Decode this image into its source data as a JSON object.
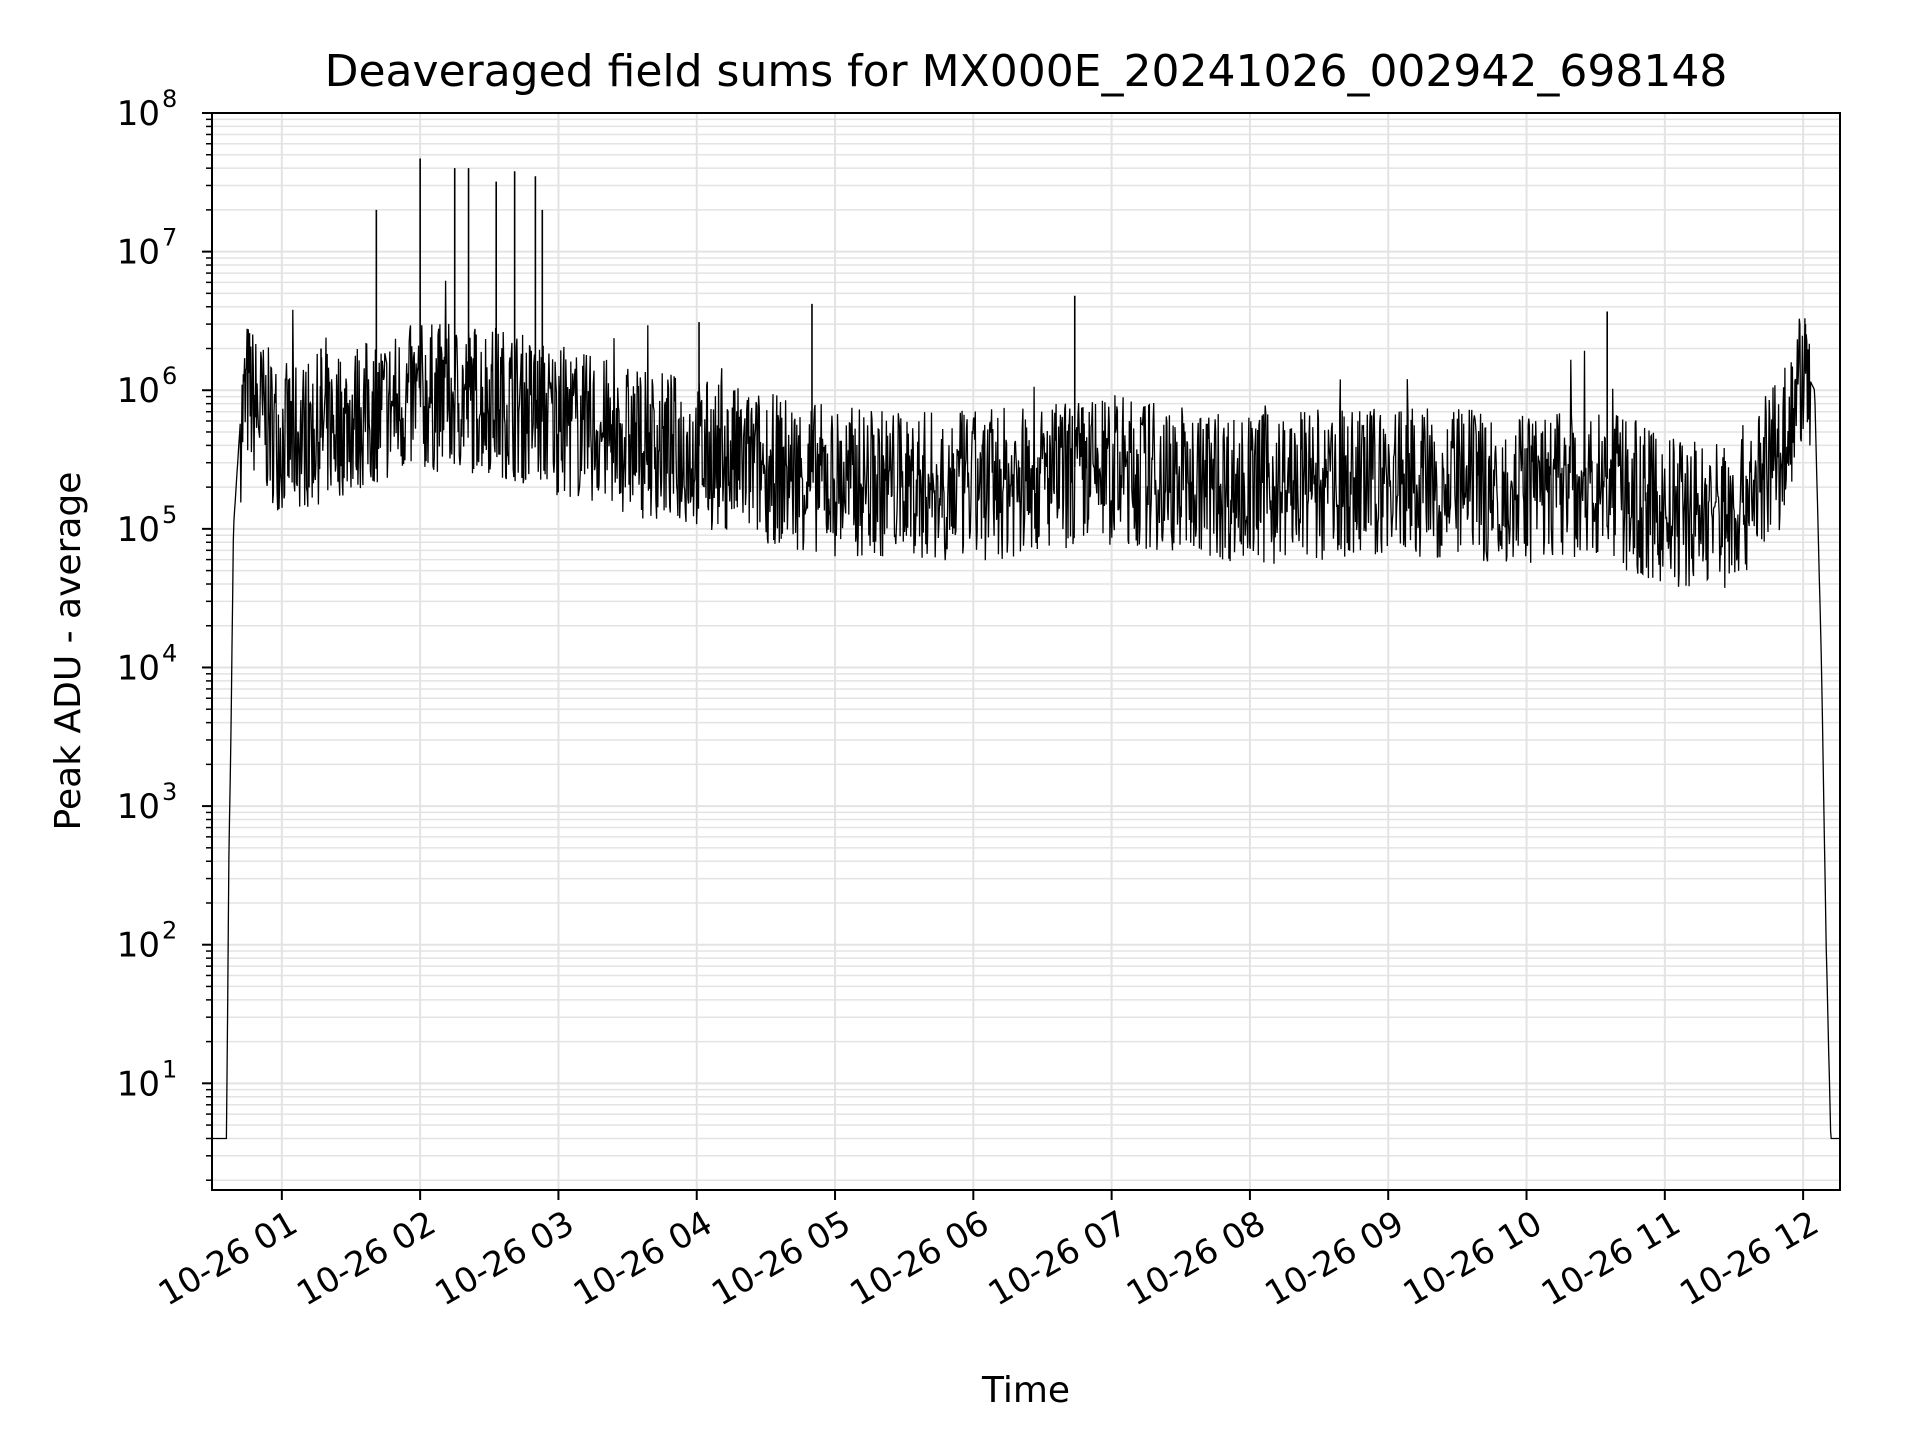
{
  "chart_data": {
    "type": "line",
    "title": "Deaveraged field sums for MX000E_20241026_002942_698148",
    "xlabel": "Time",
    "ylabel": "Peak ADU - average",
    "yscale": "log",
    "xlim": [
      "2024-10-26 00:29:42",
      "2024-10-26 12:16:00"
    ],
    "ylim": [
      1.7,
      100000000
    ],
    "grid": "on",
    "line_color": "#000000",
    "grid_color": "#e3e3e3",
    "x_ticks": [
      {
        "value": "2024-10-26 01:00",
        "label": "10-26 01"
      },
      {
        "value": "2024-10-26 02:00",
        "label": "10-26 02"
      },
      {
        "value": "2024-10-26 03:00",
        "label": "10-26 03"
      },
      {
        "value": "2024-10-26 04:00",
        "label": "10-26 04"
      },
      {
        "value": "2024-10-26 05:00",
        "label": "10-26 05"
      },
      {
        "value": "2024-10-26 06:00",
        "label": "10-26 06"
      },
      {
        "value": "2024-10-26 07:00",
        "label": "10-26 07"
      },
      {
        "value": "2024-10-26 08:00",
        "label": "10-26 08"
      },
      {
        "value": "2024-10-26 09:00",
        "label": "10-26 09"
      },
      {
        "value": "2024-10-26 10:00",
        "label": "10-26 10"
      },
      {
        "value": "2024-10-26 11:00",
        "label": "10-26 11"
      },
      {
        "value": "2024-10-26 12:00",
        "label": "10-26 12"
      }
    ],
    "y_ticks": [
      {
        "value": 10,
        "base": "10",
        "exp": "1"
      },
      {
        "value": 100,
        "base": "10",
        "exp": "2"
      },
      {
        "value": 1000,
        "base": "10",
        "exp": "3"
      },
      {
        "value": 10000,
        "base": "10",
        "exp": "4"
      },
      {
        "value": 100000,
        "base": "10",
        "exp": "5"
      },
      {
        "value": 1000000,
        "base": "10",
        "exp": "6"
      },
      {
        "value": 10000000,
        "base": "10",
        "exp": "7"
      },
      {
        "value": 100000000,
        "base": "10",
        "exp": "8"
      }
    ],
    "series": [
      {
        "x": [
          "2024-10-26 00:30",
          "2024-10-26 00:36",
          "2024-10-26 00:37",
          "2024-10-26 00:38",
          "2024-10-26 00:39",
          "2024-10-26 00:42",
          "2024-10-26 00:45",
          "2024-10-26 00:50",
          "2024-10-26 01:00",
          "2024-10-26 01:30",
          "2024-10-26 02:00",
          "2024-10-26 02:30",
          "2024-10-26 03:00",
          "2024-10-26 03:30",
          "2024-10-26 04:00",
          "2024-10-26 05:00",
          "2024-10-26 06:00",
          "2024-10-26 07:00",
          "2024-10-26 08:00",
          "2024-10-26 09:00",
          "2024-10-26 10:00",
          "2024-10-26 10:30",
          "2024-10-26 11:00",
          "2024-10-26 11:30",
          "2024-10-26 11:50",
          "2024-10-26 12:00",
          "2024-10-26 12:05",
          "2024-10-26 12:08",
          "2024-10-26 12:10",
          "2024-10-26 12:12",
          "2024-10-26 12:16"
        ],
        "y": [
          4,
          4,
          400,
          4000,
          100000,
          600000,
          1100000,
          800000,
          500000,
          700000,
          1000000,
          1000000,
          700000,
          500000,
          400000,
          250000,
          230000,
          300000,
          220000,
          250000,
          220000,
          250000,
          150000,
          150000,
          400000,
          1500000,
          1000000,
          10000,
          100,
          4,
          4
        ]
      }
    ],
    "spikes": [
      {
        "x": "2024-10-26 01:17",
        "y": 2000000
      },
      {
        "x": "2024-10-26 01:41",
        "y": 20000000
      },
      {
        "x": "2024-10-26 02:00",
        "y": 47000000
      },
      {
        "x": "2024-10-26 02:15",
        "y": 40000000
      },
      {
        "x": "2024-10-26 02:21",
        "y": 40000000
      },
      {
        "x": "2024-10-26 02:33",
        "y": 32000000
      },
      {
        "x": "2024-10-26 02:41",
        "y": 38000000
      },
      {
        "x": "2024-10-26 02:50",
        "y": 35000000
      },
      {
        "x": "2024-10-26 02:53",
        "y": 20000000
      },
      {
        "x": "2024-10-26 04:01",
        "y": 3100000
      },
      {
        "x": "2024-10-26 04:50",
        "y": 4200000
      },
      {
        "x": "2024-10-26 06:44",
        "y": 4800000
      },
      {
        "x": "2024-10-26 10:35",
        "y": 3700000
      },
      {
        "x": "2024-10-26 12:01",
        "y": 3000000
      }
    ]
  }
}
